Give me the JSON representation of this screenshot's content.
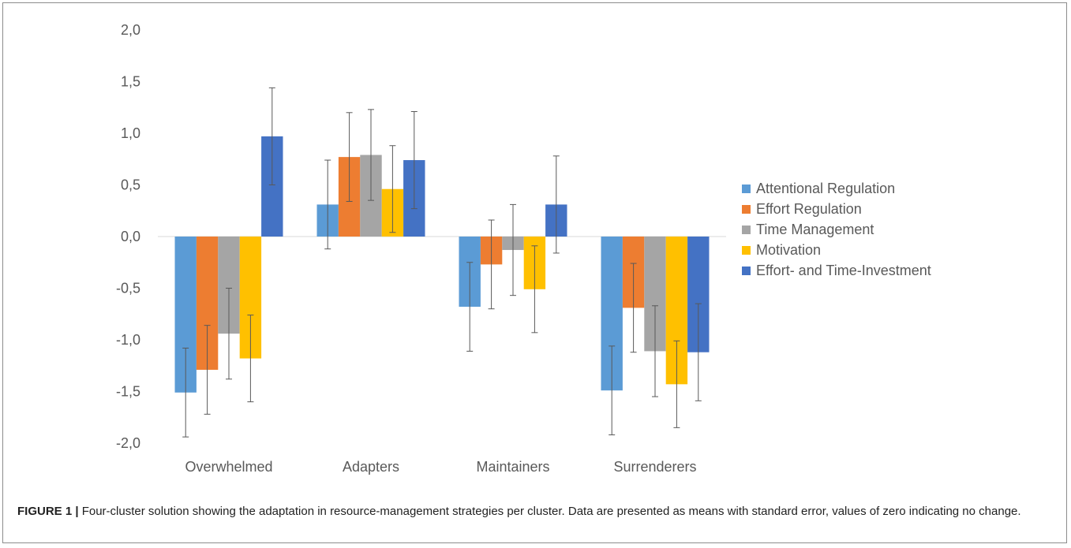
{
  "chart_data": {
    "type": "bar",
    "categories": [
      "Overwhelmed",
      "Adapters",
      "Maintainers",
      "Surrenderers"
    ],
    "series": [
      {
        "name": "Attentional Regulation",
        "color": "#5b9bd5",
        "values": [
          -1.51,
          0.31,
          -0.68,
          -1.49
        ],
        "errors": [
          0.43,
          0.43,
          0.43,
          0.43
        ]
      },
      {
        "name": "Effort Regulation",
        "color": "#ed7d31",
        "values": [
          -1.29,
          0.77,
          -0.27,
          -0.69
        ],
        "errors": [
          0.43,
          0.43,
          0.43,
          0.43
        ]
      },
      {
        "name": "Time Management",
        "color": "#a5a5a5",
        "values": [
          -0.94,
          0.79,
          -0.13,
          -1.11
        ],
        "errors": [
          0.44,
          0.44,
          0.44,
          0.44
        ]
      },
      {
        "name": "Motivation",
        "color": "#ffc000",
        "values": [
          -1.18,
          0.46,
          -0.51,
          -1.43
        ],
        "errors": [
          0.42,
          0.42,
          0.42,
          0.42
        ]
      },
      {
        "name": "Effort- and Time-Investment",
        "color": "#4472c4",
        "values": [
          0.97,
          0.74,
          0.31,
          -1.12
        ],
        "errors": [
          0.47,
          0.47,
          0.47,
          0.47
        ]
      }
    ],
    "ylim": [
      -2.0,
      2.0
    ],
    "yticks": [
      "2,0",
      "1,5",
      "1,0",
      "0,5",
      "0,0",
      "-0,5",
      "-1,0",
      "-1,5",
      "-2,0"
    ],
    "ytick_values": [
      2.0,
      1.5,
      1.0,
      0.5,
      0.0,
      -0.5,
      -1.0,
      -1.5,
      -2.0
    ],
    "legend_position": "right",
    "grid": false
  },
  "caption": {
    "label": "FIGURE 1 |",
    "text": " Four-cluster solution showing the adaptation in resource-management strategies per cluster. Data are presented as means with standard error, values of zero indicating no change."
  }
}
